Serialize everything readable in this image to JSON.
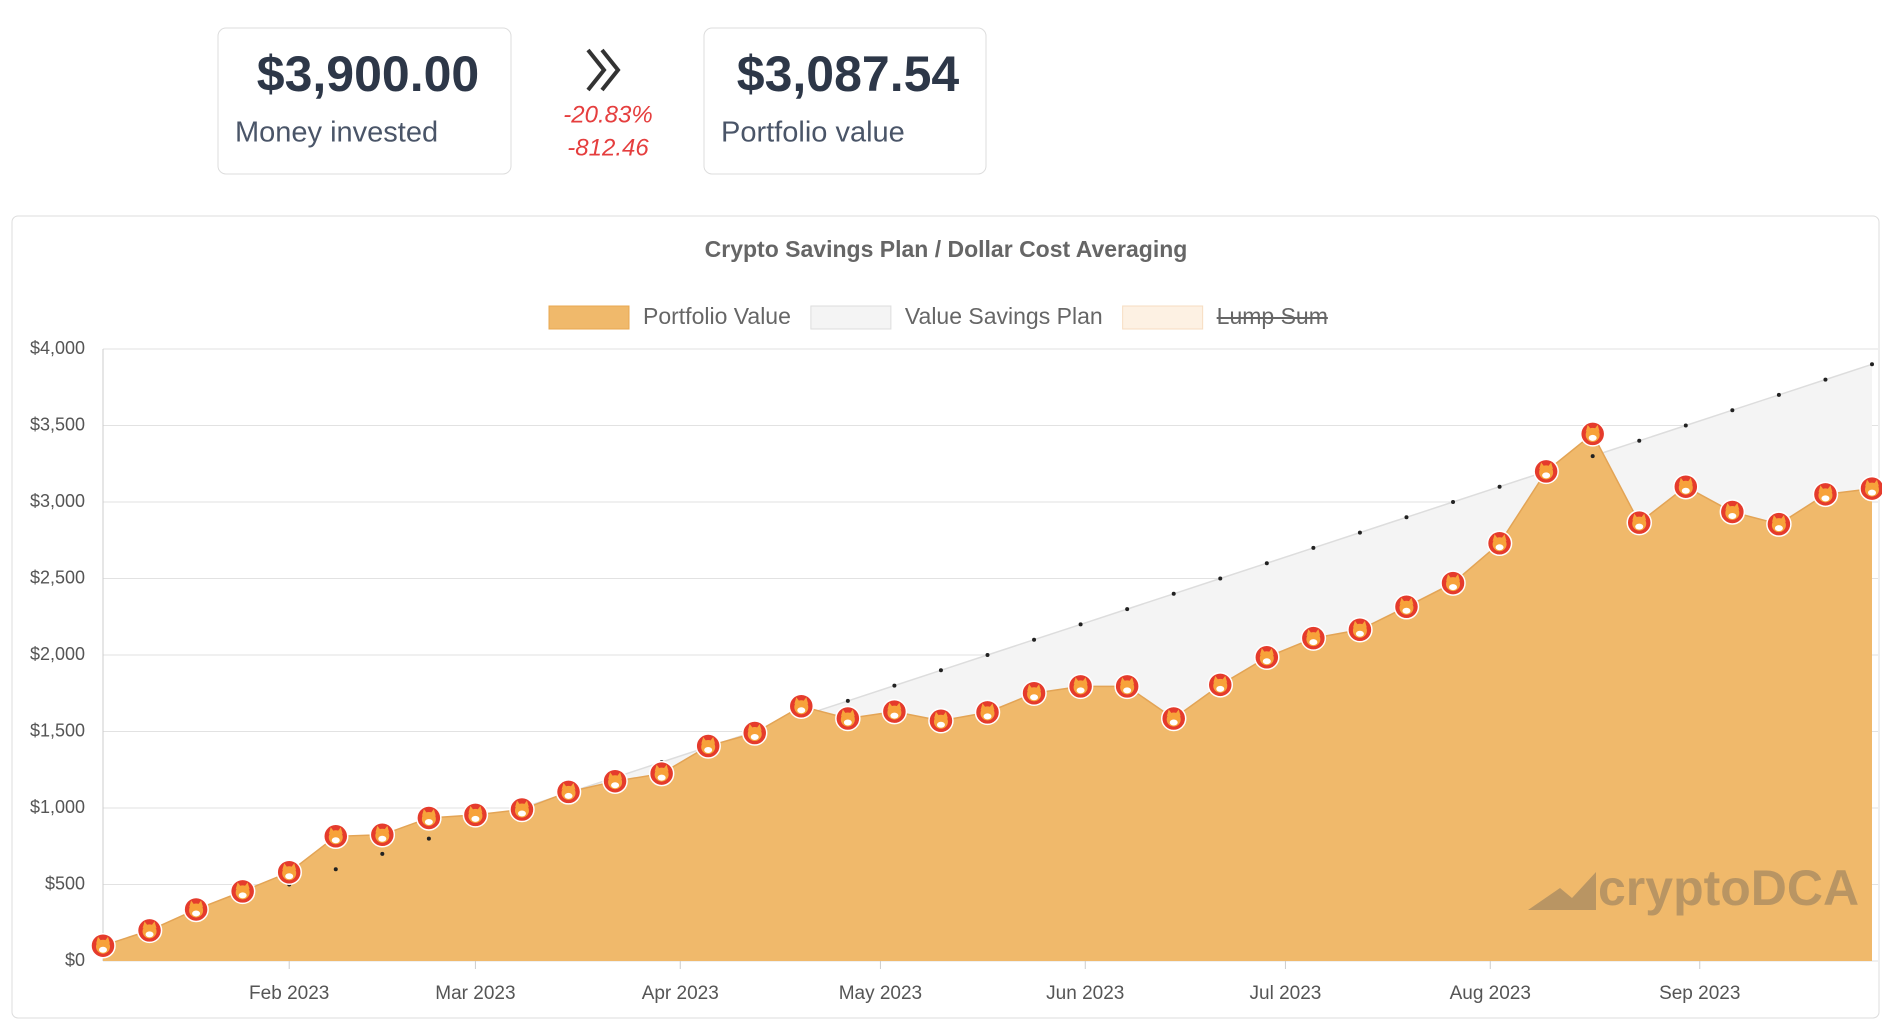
{
  "cards": {
    "invested": {
      "value": "$3,900.00",
      "label": "Money invested"
    },
    "change": {
      "percent": "-20.83%",
      "amount": "-812.46"
    },
    "portfolio": {
      "value": "$3,087.54",
      "label": "Portfolio value"
    }
  },
  "watermark": "cryptoDCA",
  "chart_data": {
    "type": "area",
    "title": "Crypto Savings Plan / Dollar Cost Averaging",
    "categories": [
      null,
      null,
      null,
      null,
      null,
      null,
      null,
      null,
      null,
      null,
      null,
      null,
      null,
      null,
      null,
      null,
      null,
      null,
      null,
      null,
      null,
      null,
      null,
      null,
      null,
      null,
      null,
      null,
      null,
      null,
      null,
      null,
      null,
      null,
      null,
      null,
      null,
      null,
      null
    ],
    "series": [
      {
        "name": "Portfolio Value",
        "color": "#f0b96b",
        "values": [
          100,
          200,
          337,
          455,
          580,
          815,
          825,
          935,
          955,
          990,
          1105,
          1175,
          1225,
          1405,
          1490,
          1665,
          1585,
          1630,
          1570,
          1625,
          1750,
          1795,
          1795,
          1585,
          1805,
          1985,
          2110,
          2165,
          2315,
          2470,
          2730,
          3200,
          3445,
          2865,
          3100,
          2935,
          2855,
          3050,
          3087.54
        ]
      },
      {
        "name": "Value Savings Plan",
        "color": "#f4f4f4",
        "values": [
          100,
          200,
          300,
          400,
          500,
          600,
          700,
          800,
          900,
          1000,
          1100,
          1200,
          1300,
          1400,
          1500,
          1600,
          1700,
          1800,
          1900,
          2000,
          2100,
          2200,
          2300,
          2400,
          2500,
          2600,
          2700,
          2800,
          2900,
          3000,
          3100,
          3200,
          3300,
          3400,
          3500,
          3600,
          3700,
          3800,
          3900
        ]
      },
      {
        "name": "Lump Sum",
        "color": "#fdf1e3",
        "hidden": true
      }
    ],
    "xlim": [
      0,
      38
    ],
    "xticks": [
      {
        "value": 4,
        "label": "Feb 2023"
      },
      {
        "value": 8,
        "label": "Mar 2023"
      },
      {
        "value": 12.4,
        "label": "Apr 2023"
      },
      {
        "value": 16.7,
        "label": "May 2023"
      },
      {
        "value": 21.1,
        "label": "Jun 2023"
      },
      {
        "value": 25.4,
        "label": "Jul 2023"
      },
      {
        "value": 29.8,
        "label": "Aug 2023"
      },
      {
        "value": 34.3,
        "label": "Sep 2023"
      }
    ],
    "ylim": [
      0,
      4000
    ],
    "yticks": [
      {
        "value": 0,
        "label": "$0"
      },
      {
        "value": 500,
        "label": "$500"
      },
      {
        "value": 1000,
        "label": "$1,000"
      },
      {
        "value": 1500,
        "label": "$1,500"
      },
      {
        "value": 2000,
        "label": "$2,000"
      },
      {
        "value": 2500,
        "label": "$2,500"
      },
      {
        "value": 3000,
        "label": "$3,000"
      },
      {
        "value": 3500,
        "label": "$3,500"
      },
      {
        "value": 4000,
        "label": "$4,000"
      }
    ],
    "grid": true,
    "legend": "top"
  }
}
